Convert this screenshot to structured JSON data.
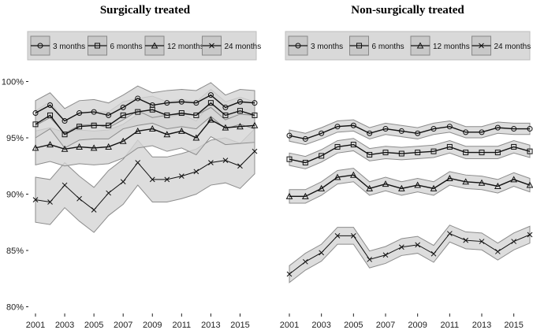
{
  "chart_data": [
    {
      "type": "line",
      "title": "Surgically treated",
      "x": [
        2001,
        2002,
        2003,
        2004,
        2005,
        2006,
        2007,
        2008,
        2009,
        2010,
        2011,
        2012,
        2013,
        2014,
        2015,
        2016
      ],
      "x_tick_labels": [
        "2001",
        "2003",
        "2005",
        "2007",
        "2009",
        "2011",
        "2013",
        "2015"
      ],
      "y_tick_labels": [
        "80%",
        "85%",
        "90%",
        "95%",
        "100%"
      ],
      "ylim": [
        80,
        100
      ],
      "grid": false,
      "legend_position": "top",
      "band": "confidence interval (shaded)",
      "series": [
        {
          "name": "3 months",
          "marker": "circle",
          "values": [
            97.2,
            97.9,
            96.5,
            97.2,
            97.3,
            97.0,
            97.7,
            98.5,
            97.9,
            98.1,
            98.2,
            98.1,
            98.8,
            97.7,
            98.2,
            98.1
          ],
          "ci_halfwidth": 1.1
        },
        {
          "name": "6 months",
          "marker": "square",
          "values": [
            96.2,
            97.0,
            95.3,
            96.0,
            96.1,
            96.1,
            97.0,
            97.3,
            97.5,
            97.0,
            97.2,
            97.0,
            98.1,
            97.0,
            97.4,
            97.0
          ],
          "ci_halfwidth": 1.2
        },
        {
          "name": "12 months",
          "marker": "triangle",
          "values": [
            94.1,
            94.4,
            94.0,
            94.2,
            94.1,
            94.2,
            94.7,
            95.6,
            95.8,
            95.3,
            95.6,
            95.0,
            96.6,
            95.9,
            96.0,
            96.1
          ],
          "ci_halfwidth": 1.5
        },
        {
          "name": "24 months",
          "marker": "cross",
          "values": [
            89.5,
            89.3,
            90.8,
            89.6,
            88.6,
            90.1,
            91.1,
            92.8,
            91.3,
            91.3,
            91.6,
            92.0,
            92.8,
            93.0,
            92.5,
            93.8
          ],
          "ci_halfwidth": 2.0
        }
      ]
    },
    {
      "type": "line",
      "title": "Non-surgically treated",
      "x": [
        2001,
        2002,
        2003,
        2004,
        2005,
        2006,
        2007,
        2008,
        2009,
        2010,
        2011,
        2012,
        2013,
        2014,
        2015,
        2016
      ],
      "x_tick_labels": [
        "2001",
        "2003",
        "2005",
        "2007",
        "2009",
        "2011",
        "2013",
        "2015"
      ],
      "ylim": [
        80,
        100
      ],
      "grid": false,
      "legend_position": "top",
      "band": "confidence interval (shaded)",
      "series": [
        {
          "name": "3 months",
          "marker": "circle",
          "values": [
            95.2,
            94.9,
            95.4,
            96.0,
            96.1,
            95.4,
            95.8,
            95.6,
            95.4,
            95.8,
            96.0,
            95.5,
            95.5,
            95.9,
            95.8,
            95.8
          ],
          "ci_halfwidth": 0.5
        },
        {
          "name": "6 months",
          "marker": "square",
          "values": [
            93.1,
            92.8,
            93.4,
            94.2,
            94.4,
            93.5,
            93.7,
            93.6,
            93.7,
            93.8,
            94.2,
            93.7,
            93.7,
            93.7,
            94.2,
            93.8
          ],
          "ci_halfwidth": 0.55
        },
        {
          "name": "12 months",
          "marker": "triangle",
          "values": [
            89.8,
            89.8,
            90.5,
            91.5,
            91.7,
            90.5,
            90.9,
            90.5,
            90.8,
            90.5,
            91.4,
            91.1,
            91.0,
            90.7,
            91.3,
            90.8
          ],
          "ci_halfwidth": 0.6
        },
        {
          "name": "24 months",
          "marker": "cross",
          "values": [
            82.9,
            84.0,
            84.8,
            86.3,
            86.3,
            84.2,
            84.6,
            85.3,
            85.5,
            84.7,
            86.5,
            85.9,
            85.8,
            84.9,
            85.8,
            86.4
          ],
          "ci_halfwidth": 0.75
        }
      ]
    }
  ],
  "colors": {
    "band": "#d4d4d4",
    "band_edge": "#8c8c8c",
    "line": "#111111",
    "legend_bg": "#d9d9d9"
  }
}
